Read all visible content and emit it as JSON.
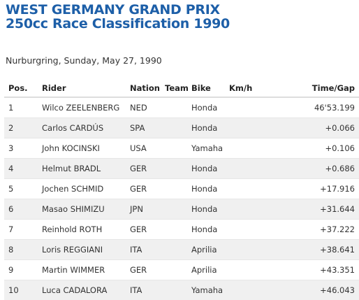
{
  "header": {
    "title_line1": "WEST GERMANY GRAND PRIX",
    "title_line2": "250cc Race Classification 1990",
    "subtitle": "Nurburgring, Sunday, May 27, 1990"
  },
  "table": {
    "columns": [
      "Pos.",
      "Rider",
      "Nation",
      "Team",
      "Bike",
      "Km/h",
      "Time/Gap"
    ],
    "rows": [
      {
        "pos": "1",
        "rider": "Wilco ZEELENBERG",
        "nation": "NED",
        "team": "",
        "bike": "Honda",
        "kmh": "",
        "time": "46'53.199"
      },
      {
        "pos": "2",
        "rider": "Carlos CARDÚS",
        "nation": "SPA",
        "team": "",
        "bike": "Honda",
        "kmh": "",
        "time": "+0.066"
      },
      {
        "pos": "3",
        "rider": "John KOCINSKI",
        "nation": "USA",
        "team": "",
        "bike": "Yamaha",
        "kmh": "",
        "time": "+0.106"
      },
      {
        "pos": "4",
        "rider": "Helmut BRADL",
        "nation": "GER",
        "team": "",
        "bike": "Honda",
        "kmh": "",
        "time": "+0.686"
      },
      {
        "pos": "5",
        "rider": "Jochen SCHMID",
        "nation": "GER",
        "team": "",
        "bike": "Honda",
        "kmh": "",
        "time": "+17.916"
      },
      {
        "pos": "6",
        "rider": "Masao SHIMIZU",
        "nation": "JPN",
        "team": "",
        "bike": "Honda",
        "kmh": "",
        "time": "+31.644"
      },
      {
        "pos": "7",
        "rider": "Reinhold ROTH",
        "nation": "GER",
        "team": "",
        "bike": "Honda",
        "kmh": "",
        "time": "+37.222"
      },
      {
        "pos": "8",
        "rider": "Loris REGGIANI",
        "nation": "ITA",
        "team": "",
        "bike": "Aprilia",
        "kmh": "",
        "time": "+38.641"
      },
      {
        "pos": "9",
        "rider": "Martin WIMMER",
        "nation": "GER",
        "team": "",
        "bike": "Aprilia",
        "kmh": "",
        "time": "+43.351"
      },
      {
        "pos": "10",
        "rider": "Luca CADALORA",
        "nation": "ITA",
        "team": "",
        "bike": "Yamaha",
        "kmh": "",
        "time": "+46.043"
      }
    ]
  },
  "colors": {
    "title": "#1d5fa8",
    "stripe": "#f0f0f0"
  }
}
